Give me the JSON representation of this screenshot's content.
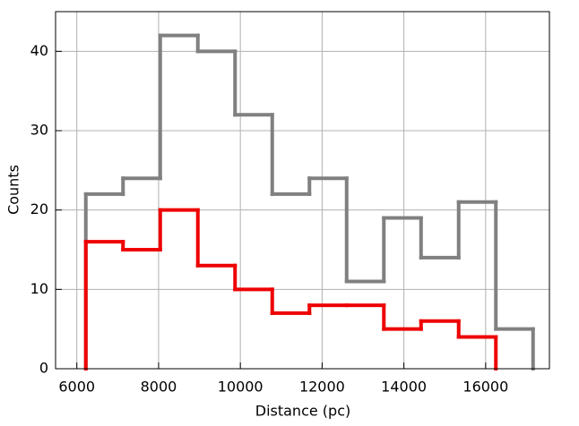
{
  "chart_data": {
    "type": "histogram",
    "xlabel": "Distance (pc)",
    "ylabel": "Counts",
    "xlim": [
      5480,
      17560
    ],
    "ylim": [
      0,
      45
    ],
    "xticks": [
      6000,
      8000,
      10000,
      12000,
      14000,
      16000
    ],
    "yticks": [
      0,
      10,
      20,
      30,
      40
    ],
    "grid": true,
    "series": [
      {
        "color": "#808080",
        "bins": [
          6220,
          7130,
          8040,
          8960,
          9870,
          10780,
          11690,
          12600,
          13510,
          14420,
          15340,
          16250,
          17160
        ],
        "counts": [
          22,
          24,
          42,
          40,
          32,
          22,
          24,
          11,
          19,
          14,
          21,
          5
        ]
      },
      {
        "color": "#ee0000",
        "bins": [
          6220,
          7130,
          8040,
          8960,
          9870,
          10780,
          11690,
          12600,
          13510,
          14420,
          15340,
          16250
        ],
        "counts": [
          16,
          15,
          20,
          13,
          10,
          7,
          8,
          8,
          5,
          6,
          4
        ]
      }
    ]
  }
}
